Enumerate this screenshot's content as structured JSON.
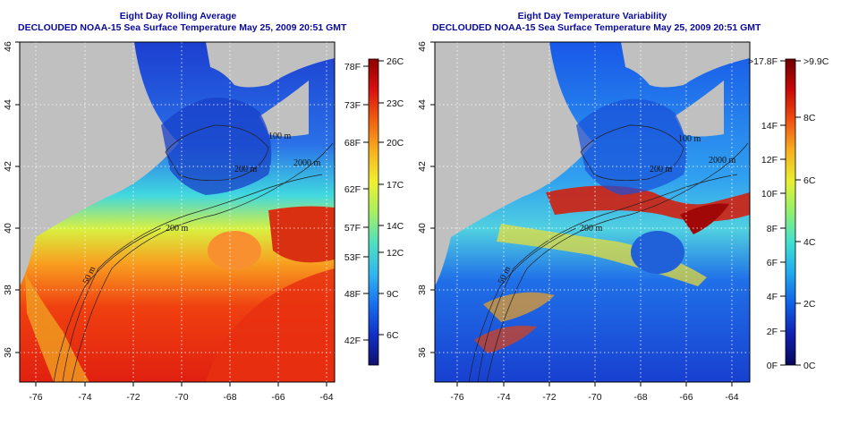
{
  "panels": [
    {
      "id": "rolling-average",
      "title_line1": "Eight Day Rolling Average",
      "title_line2": "DECLOUDED NOAA-15 Sea Surface Temperature May 25, 2009 20:51 GMT",
      "x_ticks": [
        "-76",
        "-74",
        "-72",
        "-70",
        "-68",
        "-66",
        "-64"
      ],
      "y_ticks": [
        "36",
        "38",
        "40",
        "42",
        "44",
        "46"
      ],
      "contour_labels": [
        "50 m",
        "200 m",
        "200 m",
        "2000 m",
        "100 m"
      ],
      "colorbar_left": [
        "78F",
        "73F",
        "68F",
        "62F",
        "57F",
        "53F",
        "48F",
        "42F"
      ],
      "colorbar_right": [
        "26C",
        "23C",
        "20C",
        "17C",
        "14C",
        "12C",
        "9C",
        "6C"
      ],
      "palette": [
        "#10106e",
        "#1030c8",
        "#1870f0",
        "#30b8f0",
        "#50e0c0",
        "#a8f060",
        "#f0f030",
        "#f8b020",
        "#f06010",
        "#d81010",
        "#900000"
      ]
    },
    {
      "id": "temperature-variability",
      "title_line1": "Eight Day Temperature Variability",
      "title_line2": "DECLOUDED NOAA-15 Sea Surface Temperature May 25, 2009 20:51 GMT",
      "x_ticks": [
        "-76",
        "-74",
        "-72",
        "-70",
        "-68",
        "-66",
        "-64"
      ],
      "y_ticks": [
        "36",
        "38",
        "40",
        "42",
        "44",
        "46"
      ],
      "contour_labels": [
        "50 m",
        "200 m",
        "200 m",
        "2000 m",
        "100 m"
      ],
      "colorbar_left": [
        ">17.8F",
        "14F",
        "12F",
        "10F",
        "8F",
        "6F",
        "4F",
        "2F",
        "0F"
      ],
      "colorbar_right": [
        ">9.9C",
        "8C",
        "6C",
        "4C",
        "2C",
        "0C"
      ],
      "palette": [
        "#08085a",
        "#1020b0",
        "#1060e8",
        "#20a8f0",
        "#40e0d0",
        "#90f070",
        "#e8f030",
        "#f8b020",
        "#f05010",
        "#c80808",
        "#700000"
      ]
    }
  ],
  "colors": {
    "land": "#c0c0c0",
    "title": "#0a0a9a",
    "grid": "#ffffff",
    "contour": "#202020"
  }
}
